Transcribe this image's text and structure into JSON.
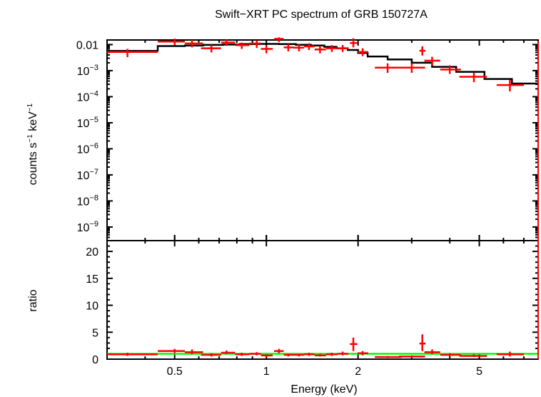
{
  "chart_data": {
    "type": "scatter",
    "title": "Swift−XRT PC spectrum of GRB 150727A",
    "xlabel": "Energy (keV)",
    "xscale": "log",
    "xlim": [
      0.3,
      7.8
    ],
    "xticks": [
      {
        "value": 0.5,
        "label": "0.5"
      },
      {
        "value": 1,
        "label": "1"
      },
      {
        "value": 2,
        "label": "2"
      },
      {
        "value": 5,
        "label": "5"
      }
    ],
    "colors": {
      "data": "#ff0000",
      "model": "#000000",
      "unity": "#00ff00",
      "axes": "#000000"
    },
    "panels": [
      {
        "name": "spectrum",
        "ylabel_base": "counts s",
        "ylabel_exp1": "−1",
        "ylabel_mid": " keV",
        "ylabel_exp2": "−1",
        "yscale": "log",
        "ylim": [
          3e-10,
          0.015
        ],
        "yticks": [
          {
            "value": 0.01,
            "base": "0.01",
            "exp": ""
          },
          {
            "value": 0.001,
            "base": "10",
            "exp": "−3"
          },
          {
            "value": 0.0001,
            "base": "10",
            "exp": "−4"
          },
          {
            "value": 1e-05,
            "base": "10",
            "exp": "−5"
          },
          {
            "value": 1e-06,
            "base": "10",
            "exp": "−6"
          },
          {
            "value": 1e-07,
            "base": "10",
            "exp": "−7"
          },
          {
            "value": 1e-08,
            "base": "10",
            "exp": "−8"
          },
          {
            "value": 1e-09,
            "base": "10",
            "exp": "−9"
          }
        ],
        "data": [
          {
            "x": 0.35,
            "xlo": 0.3,
            "xhi": 0.44,
            "y": 0.0052,
            "ylo": 0.0033,
            "yhi": 0.0068
          },
          {
            "x": 0.5,
            "xlo": 0.44,
            "xhi": 0.54,
            "y": 0.013,
            "ylo": 0.0095,
            "yhi": 0.017
          },
          {
            "x": 0.57,
            "xlo": 0.54,
            "xhi": 0.62,
            "y": 0.011,
            "ylo": 0.0078,
            "yhi": 0.015
          },
          {
            "x": 0.66,
            "xlo": 0.61,
            "xhi": 0.71,
            "y": 0.0072,
            "ylo": 0.005,
            "yhi": 0.0098
          },
          {
            "x": 0.74,
            "xlo": 0.71,
            "xhi": 0.79,
            "y": 0.012,
            "ylo": 0.009,
            "yhi": 0.0155
          },
          {
            "x": 0.83,
            "xlo": 0.79,
            "xhi": 0.88,
            "y": 0.0095,
            "ylo": 0.0068,
            "yhi": 0.012
          },
          {
            "x": 0.93,
            "xlo": 0.88,
            "xhi": 0.96,
            "y": 0.011,
            "ylo": 0.0074,
            "yhi": 0.0145
          },
          {
            "x": 1.0,
            "xlo": 0.96,
            "xhi": 1.05,
            "y": 0.0068,
            "ylo": 0.0046,
            "yhi": 0.0092
          },
          {
            "x": 1.1,
            "xlo": 1.06,
            "xhi": 1.14,
            "y": 0.0165,
            "ylo": 0.0125,
            "yhi": 0.019
          },
          {
            "x": 1.18,
            "xlo": 1.14,
            "xhi": 1.23,
            "y": 0.0078,
            "ylo": 0.0055,
            "yhi": 0.0105
          },
          {
            "x": 1.28,
            "xlo": 1.23,
            "xhi": 1.33,
            "y": 0.0076,
            "ylo": 0.0055,
            "yhi": 0.0102
          },
          {
            "x": 1.38,
            "xlo": 1.33,
            "xhi": 1.44,
            "y": 0.0085,
            "ylo": 0.0062,
            "yhi": 0.0112
          },
          {
            "x": 1.5,
            "xlo": 1.44,
            "xhi": 1.57,
            "y": 0.0065,
            "ylo": 0.0046,
            "yhi": 0.0088
          },
          {
            "x": 1.64,
            "xlo": 1.57,
            "xhi": 1.71,
            "y": 0.0072,
            "ylo": 0.0052,
            "yhi": 0.0096
          },
          {
            "x": 1.78,
            "xlo": 1.71,
            "xhi": 1.86,
            "y": 0.0072,
            "ylo": 0.0052,
            "yhi": 0.0096
          },
          {
            "x": 1.93,
            "xlo": 1.88,
            "xhi": 1.99,
            "y": 0.0115,
            "ylo": 0.0078,
            "yhi": 0.0175
          },
          {
            "x": 2.07,
            "xlo": 1.99,
            "xhi": 2.16,
            "y": 0.0052,
            "ylo": 0.0036,
            "yhi": 0.0072
          },
          {
            "x": 2.5,
            "xlo": 2.27,
            "xhi": 2.78,
            "y": 0.0013,
            "ylo": 0.00082,
            "yhi": 0.0019
          },
          {
            "x": 3.0,
            "xlo": 2.72,
            "xhi": 3.32,
            "y": 0.0013,
            "ylo": 0.00082,
            "yhi": 0.0019
          },
          {
            "x": 3.25,
            "xlo": 3.18,
            "xhi": 3.33,
            "y": 0.0058,
            "ylo": 0.0038,
            "yhi": 0.0085
          },
          {
            "x": 3.5,
            "xlo": 3.3,
            "xhi": 3.72,
            "y": 0.0024,
            "ylo": 0.0016,
            "yhi": 0.0034
          },
          {
            "x": 4.0,
            "xlo": 3.72,
            "xhi": 4.35,
            "y": 0.0011,
            "ylo": 0.00075,
            "yhi": 0.0016
          },
          {
            "x": 4.8,
            "xlo": 4.3,
            "xhi": 5.3,
            "y": 0.00058,
            "ylo": 0.00036,
            "yhi": 0.00085
          },
          {
            "x": 6.3,
            "xlo": 5.7,
            "xhi": 7.0,
            "y": 0.00028,
            "ylo": 0.00016,
            "yhi": 0.00045
          }
        ],
        "model": [
          {
            "xlo": 0.3,
            "xhi": 0.44,
            "y": 0.0057
          },
          {
            "xlo": 0.44,
            "xhi": 0.54,
            "y": 0.0088
          },
          {
            "xlo": 0.54,
            "xhi": 0.62,
            "y": 0.0092
          },
          {
            "xlo": 0.62,
            "xhi": 0.72,
            "y": 0.0097
          },
          {
            "xlo": 0.72,
            "xhi": 0.82,
            "y": 0.01
          },
          {
            "xlo": 0.82,
            "xhi": 0.95,
            "y": 0.0104
          },
          {
            "xlo": 0.95,
            "xhi": 1.1,
            "y": 0.0106
          },
          {
            "xlo": 1.1,
            "xhi": 1.25,
            "y": 0.0104
          },
          {
            "xlo": 1.25,
            "xhi": 1.4,
            "y": 0.0098
          },
          {
            "xlo": 1.4,
            "xhi": 1.55,
            "y": 0.0092
          },
          {
            "xlo": 1.55,
            "xhi": 1.7,
            "y": 0.0082
          },
          {
            "xlo": 1.7,
            "xhi": 1.85,
            "y": 0.0072
          },
          {
            "xlo": 1.85,
            "xhi": 2.0,
            "y": 0.0062
          },
          {
            "xlo": 2.0,
            "xhi": 2.15,
            "y": 0.0048
          },
          {
            "xlo": 2.15,
            "xhi": 2.5,
            "y": 0.0035
          },
          {
            "xlo": 2.5,
            "xhi": 3.0,
            "y": 0.0027
          },
          {
            "xlo": 3.0,
            "xhi": 3.5,
            "y": 0.002
          },
          {
            "xlo": 3.5,
            "xhi": 4.2,
            "y": 0.0014
          },
          {
            "xlo": 4.2,
            "xhi": 5.2,
            "y": 0.0009
          },
          {
            "xlo": 5.2,
            "xhi": 6.4,
            "y": 0.00048
          },
          {
            "xlo": 6.4,
            "xhi": 7.8,
            "y": 0.00032
          }
        ]
      },
      {
        "name": "ratio",
        "ylabel": "ratio",
        "yscale": "linear",
        "ylim": [
          0,
          22
        ],
        "yticks": [
          {
            "value": 0,
            "label": "0"
          },
          {
            "value": 5,
            "label": "5"
          },
          {
            "value": 10,
            "label": "10"
          },
          {
            "value": 15,
            "label": "15"
          },
          {
            "value": 20,
            "label": "20"
          }
        ],
        "reference_line": 1,
        "data": [
          {
            "x": 0.35,
            "xlo": 0.3,
            "xhi": 0.44,
            "y": 0.9,
            "ylo": 0.6,
            "yhi": 1.2
          },
          {
            "x": 0.5,
            "xlo": 0.44,
            "xhi": 0.54,
            "y": 1.5,
            "ylo": 1.1,
            "yhi": 1.9
          },
          {
            "x": 0.57,
            "xlo": 0.54,
            "xhi": 0.62,
            "y": 1.3,
            "ylo": 0.9,
            "yhi": 1.8
          },
          {
            "x": 0.66,
            "xlo": 0.61,
            "xhi": 0.71,
            "y": 0.8,
            "ylo": 0.5,
            "yhi": 1.1
          },
          {
            "x": 0.74,
            "xlo": 0.71,
            "xhi": 0.79,
            "y": 1.2,
            "ylo": 0.9,
            "yhi": 1.6
          },
          {
            "x": 0.83,
            "xlo": 0.79,
            "xhi": 0.88,
            "y": 0.9,
            "ylo": 0.6,
            "yhi": 1.2
          },
          {
            "x": 0.93,
            "xlo": 0.88,
            "xhi": 0.96,
            "y": 1.0,
            "ylo": 0.7,
            "yhi": 1.3
          },
          {
            "x": 1.0,
            "xlo": 0.96,
            "xhi": 1.05,
            "y": 0.7,
            "ylo": 0.4,
            "yhi": 0.9
          },
          {
            "x": 1.1,
            "xlo": 1.06,
            "xhi": 1.14,
            "y": 1.5,
            "ylo": 1.1,
            "yhi": 1.9
          },
          {
            "x": 1.18,
            "xlo": 1.14,
            "xhi": 1.23,
            "y": 0.8,
            "ylo": 0.5,
            "yhi": 1.0
          },
          {
            "x": 1.28,
            "xlo": 1.23,
            "xhi": 1.33,
            "y": 0.8,
            "ylo": 0.5,
            "yhi": 1.0
          },
          {
            "x": 1.38,
            "xlo": 1.33,
            "xhi": 1.44,
            "y": 0.9,
            "ylo": 0.6,
            "yhi": 1.2
          },
          {
            "x": 1.5,
            "xlo": 1.44,
            "xhi": 1.57,
            "y": 0.7,
            "ylo": 0.5,
            "yhi": 1.0
          },
          {
            "x": 1.64,
            "xlo": 1.57,
            "xhi": 1.71,
            "y": 0.9,
            "ylo": 0.6,
            "yhi": 1.2
          },
          {
            "x": 1.78,
            "xlo": 1.71,
            "xhi": 1.86,
            "y": 1.0,
            "ylo": 0.7,
            "yhi": 1.4
          },
          {
            "x": 1.93,
            "xlo": 1.88,
            "xhi": 1.99,
            "y": 2.8,
            "ylo": 1.5,
            "yhi": 4.0
          },
          {
            "x": 2.07,
            "xlo": 1.99,
            "xhi": 2.16,
            "y": 1.1,
            "ylo": 0.7,
            "yhi": 1.5
          },
          {
            "x": 2.5,
            "xlo": 2.27,
            "xhi": 2.78,
            "y": 0.4,
            "ylo": 0.2,
            "yhi": 0.6
          },
          {
            "x": 3.0,
            "xlo": 2.72,
            "xhi": 3.32,
            "y": 0.5,
            "ylo": 0.3,
            "yhi": 0.7
          },
          {
            "x": 3.25,
            "xlo": 3.18,
            "xhi": 3.33,
            "y": 2.9,
            "ylo": 1.5,
            "yhi": 4.6
          },
          {
            "x": 3.5,
            "xlo": 3.3,
            "xhi": 3.72,
            "y": 1.3,
            "ylo": 0.9,
            "yhi": 1.8
          },
          {
            "x": 4.0,
            "xlo": 3.72,
            "xhi": 4.35,
            "y": 0.8,
            "ylo": 0.5,
            "yhi": 1.1
          },
          {
            "x": 4.8,
            "xlo": 4.3,
            "xhi": 5.3,
            "y": 0.6,
            "ylo": 0.4,
            "yhi": 0.9
          },
          {
            "x": 6.3,
            "xlo": 5.7,
            "xhi": 7.0,
            "y": 0.9,
            "ylo": 0.5,
            "yhi": 1.4
          }
        ]
      }
    ]
  }
}
